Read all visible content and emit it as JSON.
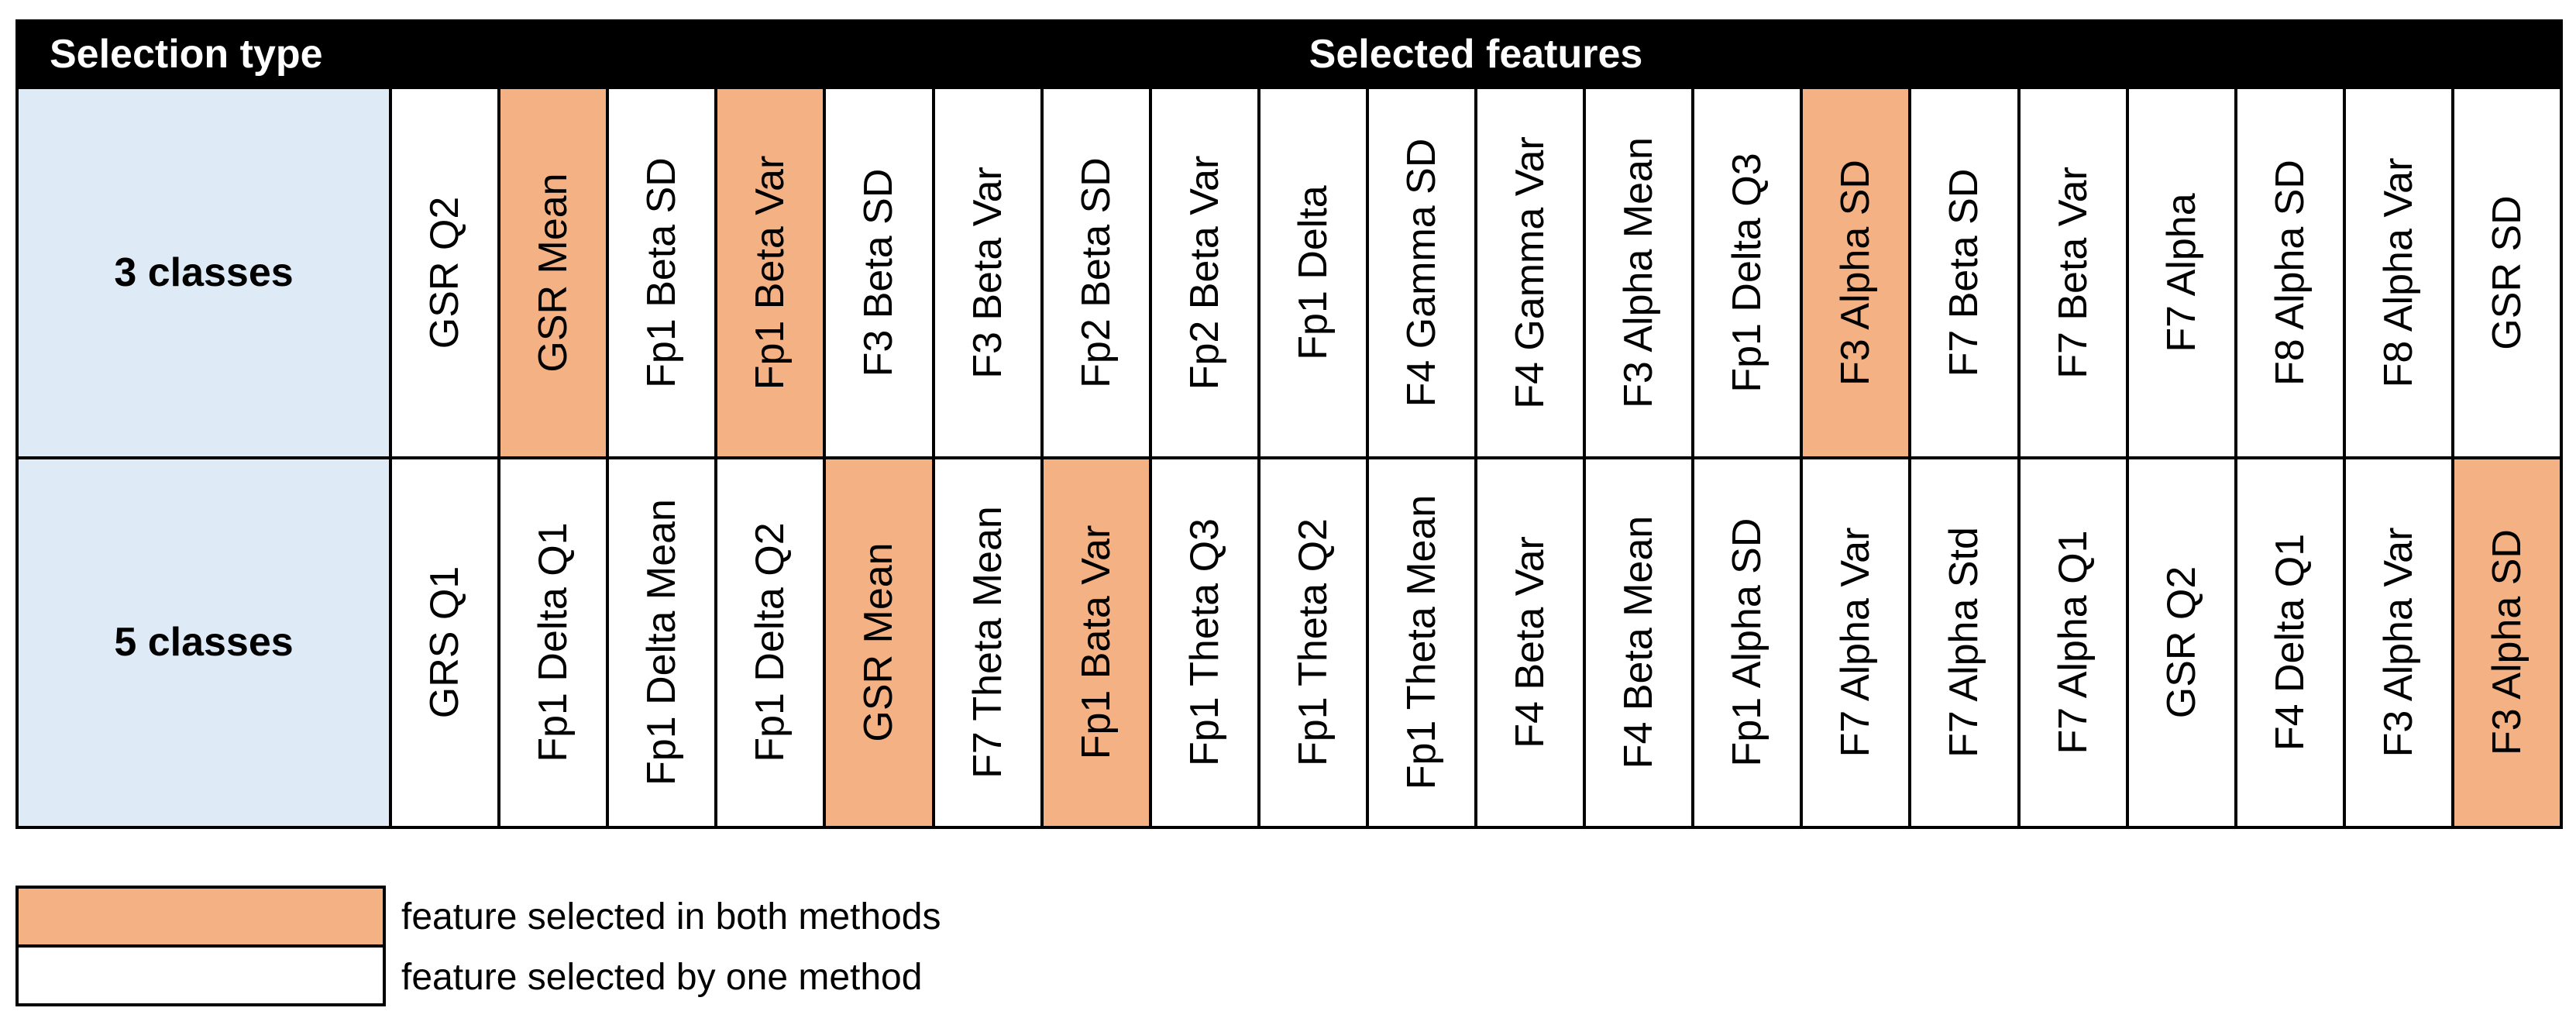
{
  "header": {
    "selection_type": "Selection type",
    "selected_features": "Selected features"
  },
  "colors": {
    "both_methods": "#f4b183",
    "one_method": "#ffffff",
    "row_label_bg": "#deebf7",
    "header_bg": "#000000"
  },
  "rows": [
    {
      "label": "3 classes",
      "features": [
        {
          "name": "GSR Q2",
          "both": false
        },
        {
          "name": "GSR Mean",
          "both": true
        },
        {
          "name": "Fp1 Beta SD",
          "both": false
        },
        {
          "name": "Fp1 Beta Var",
          "both": true
        },
        {
          "name": "F3 Beta SD",
          "both": false
        },
        {
          "name": "F3 Beta Var",
          "both": false
        },
        {
          "name": "Fp2 Beta SD",
          "both": false
        },
        {
          "name": "Fp2 Beta Var",
          "both": false
        },
        {
          "name": "Fp1 Delta",
          "both": false
        },
        {
          "name": "F4 Gamma SD",
          "both": false
        },
        {
          "name": "F4 Gamma Var",
          "both": false
        },
        {
          "name": "F3 Alpha Mean",
          "both": false
        },
        {
          "name": "Fp1 Delta Q3",
          "both": false
        },
        {
          "name": "F3 Alpha SD",
          "both": true
        },
        {
          "name": "F7 Beta SD",
          "both": false
        },
        {
          "name": "F7 Beta Var",
          "both": false
        },
        {
          "name": "F7 Alpha",
          "both": false
        },
        {
          "name": "F8 Alpha SD",
          "both": false
        },
        {
          "name": "F8 Alpha Var",
          "both": false
        },
        {
          "name": "GSR SD",
          "both": false
        }
      ]
    },
    {
      "label": "5 classes",
      "features": [
        {
          "name": "GRS Q1",
          "both": false
        },
        {
          "name": "Fp1 Delta Q1",
          "both": false
        },
        {
          "name": "Fp1 Delta Mean",
          "both": false
        },
        {
          "name": "Fp1 Delta Q2",
          "both": false
        },
        {
          "name": "GSR Mean",
          "both": true
        },
        {
          "name": "F7 Theta Mean",
          "both": false
        },
        {
          "name": "Fp1 Bata Var",
          "both": true
        },
        {
          "name": "Fp1 Theta Q3",
          "both": false
        },
        {
          "name": "Fp1 Theta Q2",
          "both": false
        },
        {
          "name": "Fp1 Theta Mean",
          "both": false
        },
        {
          "name": "F4 Beta Var",
          "both": false
        },
        {
          "name": "F4 Beta Mean",
          "both": false
        },
        {
          "name": "Fp1 Alpha SD",
          "both": false
        },
        {
          "name": "F7 Alpha Var",
          "both": false
        },
        {
          "name": "F7 Alpha Std",
          "both": false
        },
        {
          "name": "F7 Alpha Q1",
          "both": false
        },
        {
          "name": "GSR Q2",
          "both": false
        },
        {
          "name": "F4 Delta Q1",
          "both": false
        },
        {
          "name": "F3 Alpha Var",
          "both": false
        },
        {
          "name": "F3 Alpha SD",
          "both": true
        }
      ]
    }
  ],
  "legend": {
    "both_label": "feature selected in both methods",
    "one_label": "feature selected by one method"
  }
}
